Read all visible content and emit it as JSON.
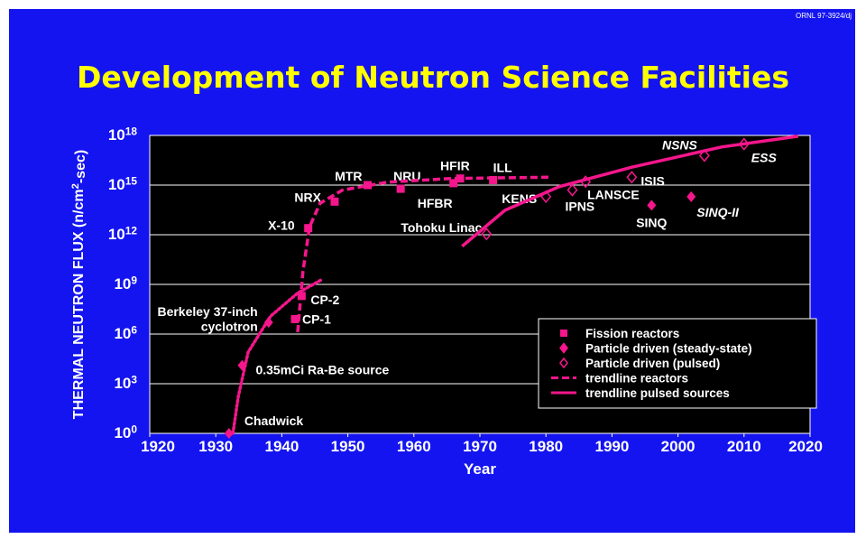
{
  "credit": "ORNL 97-3924/dj",
  "chart_data": {
    "type": "scatter",
    "title": "Development of Neutron Science Facilities",
    "xlabel": "Year",
    "ylabel": "THERMAL NEUTRON FLUX (n/cm^2-sec)",
    "log_y": true,
    "grid": true,
    "legend": "lower right",
    "xlim": [
      1920,
      2020
    ],
    "xticks": [
      1920,
      1930,
      1940,
      1950,
      1960,
      1970,
      1980,
      1990,
      2000,
      2010,
      2020
    ],
    "ylim": [
      1,
      1e+18
    ],
    "yticks": [
      {
        "value": 1,
        "label": "10^0"
      },
      {
        "value": 1000,
        "label": "10^3"
      },
      {
        "value": 1000000,
        "label": "10^6"
      },
      {
        "value": 1000000000,
        "label": "10^9"
      },
      {
        "value": 1000000000000,
        "label": "10^12"
      },
      {
        "value": 1000000000000000,
        "label": "10^15"
      },
      {
        "value": 1000000000000000000,
        "label": "10^18"
      }
    ],
    "series": [
      {
        "name": "Fission reactors",
        "marker": "square",
        "color": "#f5168c",
        "x": [
          1942,
          1943,
          1944,
          1948,
          1953,
          1958,
          1966,
          1967,
          1972
        ],
        "values": [
          8000000,
          200000000,
          2500000000000,
          100000000000000,
          1000000000000000,
          600000000000000,
          1300000000000000,
          2500000000000000,
          2000000000000000
        ],
        "labels": [
          "CP-1",
          "CP-2",
          "X-10",
          "NRX",
          "MTR",
          "NRU",
          "HFBR",
          "HFIR",
          "ILL"
        ]
      },
      {
        "name": "Particle driven (steady-state)",
        "marker": "diamond",
        "color": "#f5168c",
        "x": [
          1932,
          1934,
          1938,
          1996,
          2002
        ],
        "values": [
          1,
          13000,
          5000000,
          60000000000000,
          200000000000000
        ],
        "labels": [
          "Chadwick",
          "0.35mCi Ra-Be source",
          "Berkeley 37-inch\ncyclotron",
          "SINQ",
          "SINQ-II"
        ]
      },
      {
        "name": "Particle driven (pulsed)",
        "marker": "open-diamond",
        "color": "#f5168c",
        "x": [
          1971,
          1980,
          1984,
          1986,
          1993,
          2004,
          2010
        ],
        "values": [
          1100000000000,
          200000000000000,
          500000000000000,
          1600000000000000,
          3000000000000000,
          60000000000000000,
          300000000000000000
        ],
        "labels": [
          "Tohoku Linac",
          "KENS",
          "IPNS",
          "LANSCE",
          "ISIS",
          "NSNS",
          "ESS"
        ]
      },
      {
        "name": "trendline reactors",
        "marker": "dashed-line",
        "color": "#f5168c",
        "x": [
          1942.4,
          1943.2,
          1944.2,
          1945.8,
          1949.2,
          1956,
          1965.6,
          1980.7
        ],
        "values": [
          1300000,
          6000000000,
          3000000000000,
          80000000000000,
          500000000000000,
          1500000000000000,
          2500000000000000,
          3000000000000000
        ]
      },
      {
        "name": "trendline pulsed sources",
        "marker": "solid-line",
        "color": "#f5168c",
        "x": [
          1967.3,
          1973.8,
          1982,
          1993,
          2006.6,
          2018.2
        ],
        "values": [
          200000000000,
          30000000000000,
          800000000000000,
          12000000000000000,
          200000000000000000,
          900000000000000000
        ]
      },
      {
        "marker": "dotted-line",
        "color": "#f5168c",
        "x": [
          1932.6,
          1933.4,
          1934.9,
          1938.3,
          1942.4,
          1946.1
        ],
        "values": [
          1,
          160,
          80000,
          12000000,
          300000000,
          2000000000
        ]
      }
    ]
  }
}
